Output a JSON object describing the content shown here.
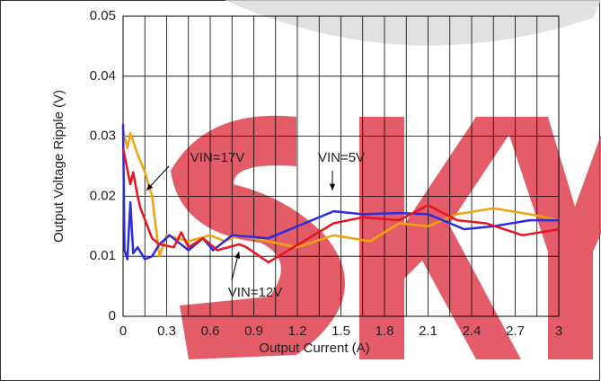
{
  "chart_data": {
    "type": "line",
    "x_label": "Output Current (A)",
    "y_label": "Output Voltage Ripple (V)",
    "xlim": [
      0,
      3
    ],
    "ylim": [
      0,
      0.05
    ],
    "xticks": [
      0,
      0.3,
      0.6,
      0.9,
      1.2,
      1.5,
      1.8,
      2.1,
      2.4,
      2.7,
      3
    ],
    "yticks": [
      0,
      0.01,
      0.02,
      0.03,
      0.04,
      0.05
    ],
    "x_gridlines": [
      0.15,
      0.45,
      0.75,
      1.05,
      1.35,
      1.65,
      1.95,
      2.25,
      2.55,
      2.85
    ],
    "grid": true,
    "series": [
      {
        "name": "VIN=17V",
        "color": "#f0a30a",
        "x": [
          0,
          0.03,
          0.05,
          0.1,
          0.15,
          0.2,
          0.25,
          0.3,
          0.45,
          0.6,
          0.7,
          0.8,
          1.0,
          1.2,
          1.45,
          1.7,
          1.9,
          2.1,
          2.3,
          2.55,
          2.8,
          3
        ],
        "values": [
          0.031,
          0.028,
          0.0305,
          0.027,
          0.024,
          0.02,
          0.01,
          0.0135,
          0.0125,
          0.0135,
          0.0125,
          0.0135,
          0.0125,
          0.0115,
          0.0135,
          0.0125,
          0.0155,
          0.015,
          0.017,
          0.018,
          0.017,
          0.016
        ]
      },
      {
        "name": "VIN=5V",
        "color": "#2b2be0",
        "x": [
          0,
          0.01,
          0.03,
          0.05,
          0.07,
          0.1,
          0.15,
          0.2,
          0.25,
          0.32,
          0.45,
          0.55,
          0.62,
          0.75,
          1.0,
          1.45,
          1.65,
          1.9,
          2.1,
          2.35,
          2.55,
          2.8,
          3
        ],
        "values": [
          0.032,
          0.011,
          0.0095,
          0.019,
          0.0105,
          0.0115,
          0.0095,
          0.01,
          0.012,
          0.0135,
          0.011,
          0.013,
          0.011,
          0.0135,
          0.013,
          0.0175,
          0.017,
          0.0172,
          0.017,
          0.0145,
          0.015,
          0.016,
          0.016
        ]
      },
      {
        "name": "VIN=12V",
        "color": "#e8141e",
        "x": [
          0,
          0.05,
          0.07,
          0.1,
          0.12,
          0.2,
          0.25,
          0.35,
          0.4,
          0.45,
          0.55,
          0.65,
          0.8,
          0.85,
          1.0,
          1.45,
          1.65,
          1.9,
          2.1,
          2.3,
          2.5,
          2.75,
          3
        ],
        "values": [
          0.028,
          0.022,
          0.024,
          0.02,
          0.018,
          0.013,
          0.012,
          0.0115,
          0.014,
          0.0115,
          0.013,
          0.011,
          0.012,
          0.0115,
          0.009,
          0.0155,
          0.0165,
          0.016,
          0.0185,
          0.016,
          0.0155,
          0.0135,
          0.0145
        ]
      }
    ]
  }
}
